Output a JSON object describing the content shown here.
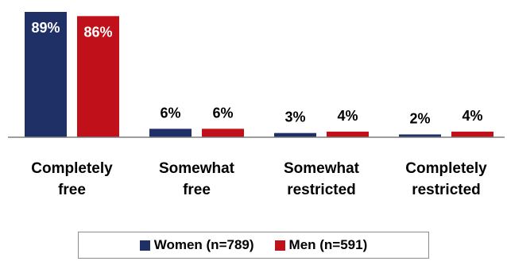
{
  "chart_data": {
    "type": "bar",
    "categories": [
      [
        "Completely",
        "free"
      ],
      [
        "Somewhat",
        "free"
      ],
      [
        "Somewhat",
        "restricted"
      ],
      [
        "Completely",
        "restricted"
      ]
    ],
    "series": [
      {
        "name": "Women (n=789)",
        "color": "#1f3067",
        "values": [
          89,
          6,
          3,
          2
        ],
        "labels": [
          "89%",
          "6%",
          "3%",
          "2%"
        ]
      },
      {
        "name": "Men (n=591)",
        "color": "#c0101a",
        "values": [
          86,
          6,
          4,
          4
        ],
        "labels": [
          "86%",
          "6%",
          "4%",
          "4%"
        ]
      }
    ],
    "ylim": [
      0,
      89
    ],
    "grid": false,
    "legend_position": "bottom"
  }
}
